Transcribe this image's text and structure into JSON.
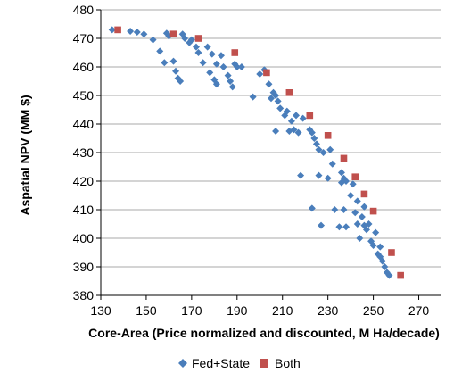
{
  "chart_data": {
    "type": "scatter",
    "title": "",
    "xlabel": "Core-Area  (Price normalized and discounted, M Ha/decade)",
    "ylabel": "Aspatial  NPV (MM $)",
    "xlim": [
      130,
      280
    ],
    "ylim": [
      380,
      480
    ],
    "xticks": [
      130,
      150,
      170,
      190,
      210,
      230,
      250,
      270
    ],
    "yticks": [
      380,
      390,
      400,
      410,
      420,
      430,
      440,
      450,
      460,
      470,
      480
    ],
    "grid": "horizontal",
    "legend": "bottom",
    "series": [
      {
        "name": "Fed+State",
        "marker": "diamond",
        "color": "#4a7ebb",
        "points": [
          [
            135,
            473
          ],
          [
            143,
            472.5
          ],
          [
            146,
            472.2
          ],
          [
            149,
            471.5
          ],
          [
            153,
            469.5
          ],
          [
            156,
            465.5
          ],
          [
            158,
            461.5
          ],
          [
            159,
            471.8
          ],
          [
            160,
            470.8
          ],
          [
            162,
            462
          ],
          [
            163,
            458.5
          ],
          [
            164,
            456
          ],
          [
            165,
            455
          ],
          [
            166,
            471.5
          ],
          [
            167,
            470
          ],
          [
            169,
            468.5
          ],
          [
            170,
            469.5
          ],
          [
            172,
            467
          ],
          [
            173,
            465
          ],
          [
            175,
            461.5
          ],
          [
            177,
            467
          ],
          [
            178,
            458
          ],
          [
            179,
            464.5
          ],
          [
            180,
            455.5
          ],
          [
            181,
            454
          ],
          [
            181,
            461
          ],
          [
            183,
            464
          ],
          [
            184,
            460
          ],
          [
            186,
            457
          ],
          [
            187,
            455
          ],
          [
            188,
            453
          ],
          [
            189,
            461
          ],
          [
            190,
            460
          ],
          [
            192,
            460
          ],
          [
            197,
            449.5
          ],
          [
            200,
            457.5
          ],
          [
            202,
            459
          ],
          [
            204,
            454
          ],
          [
            205,
            449
          ],
          [
            206,
            451
          ],
          [
            207,
            450
          ],
          [
            207,
            437.5
          ],
          [
            208,
            448
          ],
          [
            209,
            445.5
          ],
          [
            211,
            443
          ],
          [
            212,
            444.5
          ],
          [
            213,
            437.5
          ],
          [
            214,
            441
          ],
          [
            215,
            438
          ],
          [
            216,
            443
          ],
          [
            217,
            437
          ],
          [
            218,
            422
          ],
          [
            219,
            442
          ],
          [
            222,
            438
          ],
          [
            223,
            437
          ],
          [
            223,
            410.5
          ],
          [
            224,
            435
          ],
          [
            225,
            433
          ],
          [
            226,
            431
          ],
          [
            226,
            422
          ],
          [
            227,
            404.5
          ],
          [
            228,
            430
          ],
          [
            230,
            421
          ],
          [
            231,
            431
          ],
          [
            232,
            426
          ],
          [
            233,
            410
          ],
          [
            235,
            404
          ],
          [
            236,
            423
          ],
          [
            236,
            419.5
          ],
          [
            237,
            421
          ],
          [
            237,
            410
          ],
          [
            238,
            420
          ],
          [
            238,
            404
          ],
          [
            240,
            415
          ],
          [
            241,
            419
          ],
          [
            242,
            409
          ],
          [
            243,
            405
          ],
          [
            243,
            413
          ],
          [
            244,
            400
          ],
          [
            245,
            407.5
          ],
          [
            246,
            411
          ],
          [
            246,
            404.5
          ],
          [
            247,
            403
          ],
          [
            248,
            405
          ],
          [
            249,
            399
          ],
          [
            250,
            397.5
          ],
          [
            251,
            402
          ],
          [
            252,
            394.5
          ],
          [
            253,
            393.5
          ],
          [
            253,
            397
          ],
          [
            254,
            392
          ],
          [
            255,
            390
          ],
          [
            256,
            388
          ],
          [
            257,
            387
          ]
        ]
      },
      {
        "name": "Both",
        "marker": "square",
        "color": "#c0504d",
        "points": [
          [
            137.5,
            473
          ],
          [
            162,
            471.5
          ],
          [
            173,
            470
          ],
          [
            189,
            465
          ],
          [
            203,
            458
          ],
          [
            213,
            451
          ],
          [
            222,
            443
          ],
          [
            230,
            436
          ],
          [
            237,
            428
          ],
          [
            242,
            421.5
          ],
          [
            246,
            415.5
          ],
          [
            250,
            409.5
          ],
          [
            258,
            395
          ],
          [
            262,
            387
          ]
        ]
      }
    ]
  }
}
